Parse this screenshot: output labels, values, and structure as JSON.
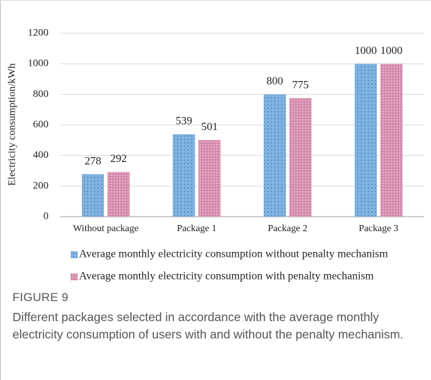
{
  "chart_data": {
    "type": "bar",
    "ylabel": "Electricity consumption/kWh",
    "categories": [
      "Without package",
      "Package 1",
      "Package 2",
      "Package 3"
    ],
    "series": [
      {
        "name": "Average monthly electricity consumption without penalty mechanism",
        "color": "#7fb2e0",
        "values": [
          278,
          539,
          800,
          1000
        ]
      },
      {
        "name": "Average monthly electricity consumption with penalty mechanism",
        "color": "#d58aab",
        "values": [
          292,
          501,
          775,
          1000
        ]
      }
    ],
    "ylim": [
      0,
      1200
    ],
    "yticks": [
      0,
      200,
      400,
      600,
      800,
      1000,
      1200
    ],
    "grid": true,
    "data_labels": true,
    "figure_label": "FIGURE 9",
    "caption": "Different packages selected in accordance with the average monthly electricity consumption of users with and without the penalty mechanism."
  }
}
